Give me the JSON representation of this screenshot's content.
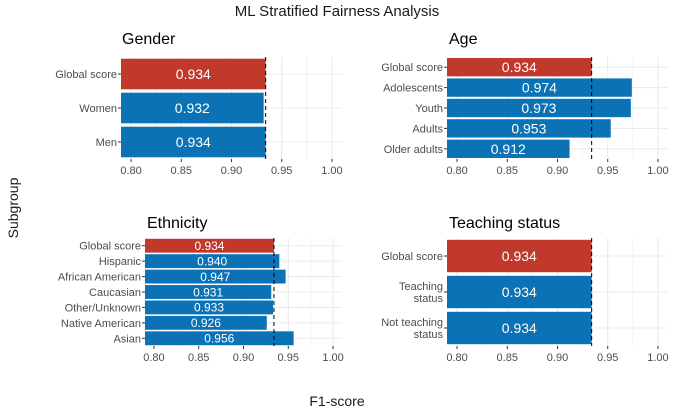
{
  "title": "ML Stratified Fairness Analysis",
  "xlabel": "F1-score",
  "ylabel": "Subgroup",
  "colors": {
    "global": "#c0392b",
    "subgroup": "#0b72b5",
    "grid": "#ebebeb",
    "reference_line": "#000000"
  },
  "chart_data": [
    {
      "type": "bar",
      "orientation": "horizontal",
      "title": "Gender",
      "categories": [
        "Global score",
        "Women",
        "Men"
      ],
      "values": [
        0.934,
        0.932,
        0.934
      ],
      "labels": [
        "0.934",
        "0.932",
        "0.934"
      ],
      "xlim": [
        0.79,
        1.01
      ],
      "xticks": [
        "0.80",
        "0.85",
        "0.90",
        "0.95",
        "1.00"
      ],
      "reference_line": 0.934,
      "grid": true
    },
    {
      "type": "bar",
      "orientation": "horizontal",
      "title": "Age",
      "categories": [
        "Global score",
        "Adolescents",
        "Youth",
        "Adults",
        "Older adults"
      ],
      "values": [
        0.934,
        0.974,
        0.973,
        0.953,
        0.912
      ],
      "labels": [
        "0.934",
        "0.974",
        "0.973",
        "0.953",
        "0.912"
      ],
      "xlim": [
        0.79,
        1.01
      ],
      "xticks": [
        "0.80",
        "0.85",
        "0.90",
        "0.95",
        "1.00"
      ],
      "reference_line": 0.934,
      "grid": true
    },
    {
      "type": "bar",
      "orientation": "horizontal",
      "title": "Ethnicity",
      "categories": [
        "Global score",
        "Hispanic",
        "African American",
        "Caucasian",
        "Other/Unknown",
        "Native American",
        "Asian"
      ],
      "values": [
        0.934,
        0.94,
        0.947,
        0.931,
        0.933,
        0.926,
        0.956
      ],
      "labels": [
        "0.934",
        "0.940",
        "0.947",
        "0.931",
        "0.933",
        "0.926",
        "0.956"
      ],
      "xlim": [
        0.79,
        1.01
      ],
      "xticks": [
        "0.80",
        "0.85",
        "0.90",
        "0.95",
        "1.00"
      ],
      "reference_line": 0.934,
      "grid": true
    },
    {
      "type": "bar",
      "orientation": "horizontal",
      "title": "Teaching status",
      "categories": [
        "Global score",
        "Teaching\nstatus",
        "Not teaching\nstatus"
      ],
      "values": [
        0.934,
        0.934,
        0.934
      ],
      "labels": [
        "0.934",
        "0.934",
        "0.934"
      ],
      "xlim": [
        0.79,
        1.01
      ],
      "xticks": [
        "0.80",
        "0.85",
        "0.90",
        "0.95",
        "1.00"
      ],
      "reference_line": 0.934,
      "grid": true
    }
  ]
}
